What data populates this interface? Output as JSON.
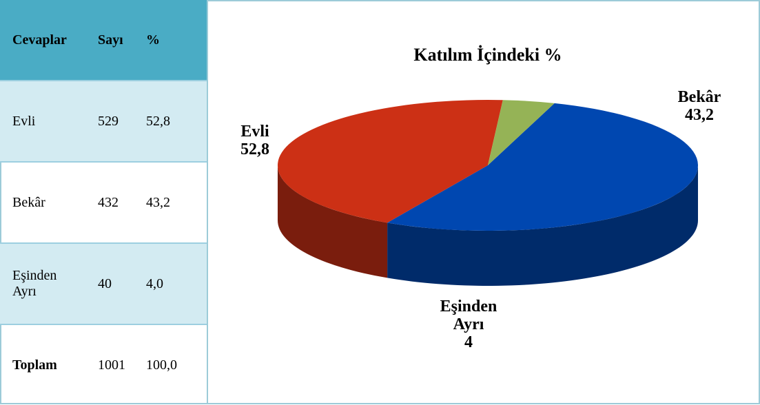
{
  "table": {
    "header": [
      "Cevaplar",
      "Sayı",
      "%"
    ],
    "rows": [
      [
        "Evli",
        "529",
        "52,8"
      ],
      [
        "Bekâr",
        "432",
        "43,2"
      ],
      [
        "Eşinden Ayrı",
        "40",
        "4,0"
      ],
      [
        "Toplam",
        "1001",
        "100,0"
      ]
    ]
  },
  "chart_data": {
    "type": "pie",
    "title": "Katılım İçindeki %",
    "categories": [
      "Evli",
      "Bekâr",
      "Eşinden Ayrı"
    ],
    "values": [
      52.8,
      43.2,
      4
    ],
    "value_labels": [
      "52,8",
      "43,2",
      "4"
    ],
    "colors": [
      "#0047b0",
      "#cc3015",
      "#95b356"
    ]
  }
}
